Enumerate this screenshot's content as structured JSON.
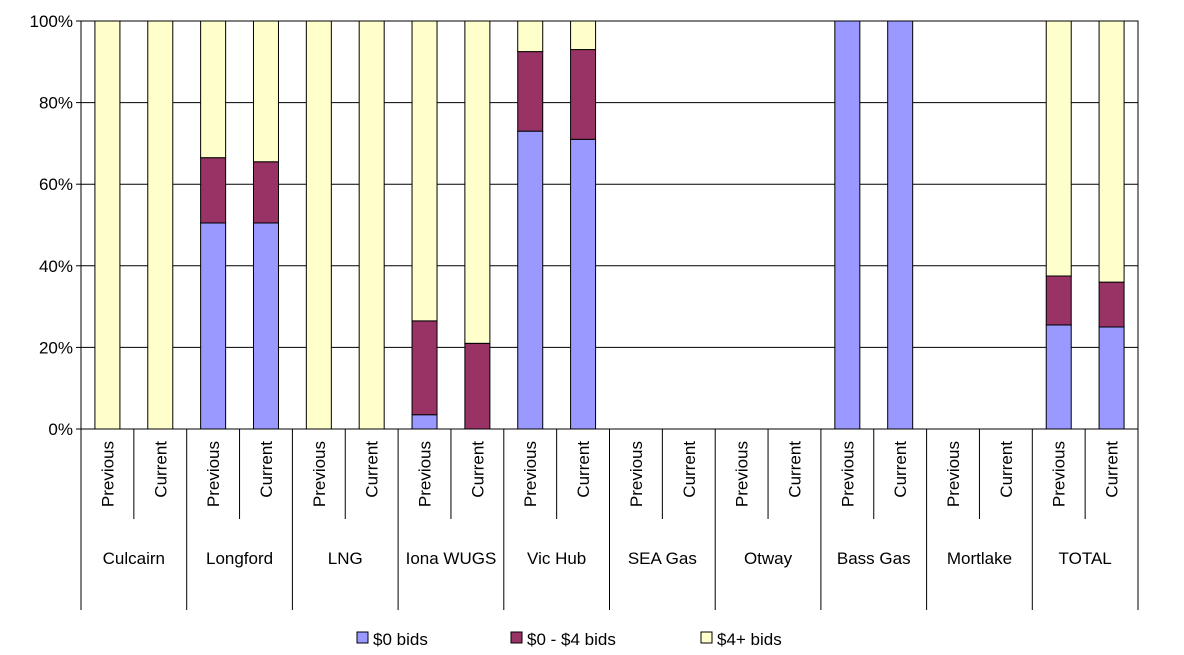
{
  "chart_data": {
    "type": "bar",
    "stacked": true,
    "percent_stacked": true,
    "groups": [
      "Culcairn",
      "Longford",
      "LNG",
      "Iona WUGS",
      "Vic Hub",
      "SEA Gas",
      "Otway",
      "Bass Gas",
      "Mortlake",
      "TOTAL"
    ],
    "sub_categories": [
      "Previous",
      "Current"
    ],
    "series": [
      {
        "name": "$0 bids",
        "color": "#9999ff",
        "values": [
          0,
          0,
          50.5,
          50.5,
          0,
          0,
          3.5,
          0,
          73,
          71,
          0,
          0,
          0,
          0,
          100,
          100,
          0,
          0,
          25.5,
          25
        ]
      },
      {
        "name": "$0 - $4 bids",
        "color": "#993366",
        "values": [
          0,
          0,
          16,
          15,
          0,
          0,
          23,
          21,
          19.5,
          22,
          0,
          0,
          0,
          0,
          0,
          0,
          0,
          0,
          12,
          11
        ]
      },
      {
        "name": "$4+ bids",
        "color": "#ffffcc",
        "values": [
          100,
          100,
          33.5,
          34.5,
          100,
          100,
          73.5,
          79,
          7.5,
          7,
          0,
          0,
          0,
          0,
          0,
          0,
          0,
          0,
          62.5,
          64
        ]
      }
    ],
    "ylim": [
      0,
      100
    ],
    "yticks": [
      "0%",
      "20%",
      "40%",
      "60%",
      "80%",
      "100%"
    ],
    "grid": true,
    "legend_position": "bottom",
    "title": "",
    "xlabel": "",
    "ylabel": ""
  }
}
